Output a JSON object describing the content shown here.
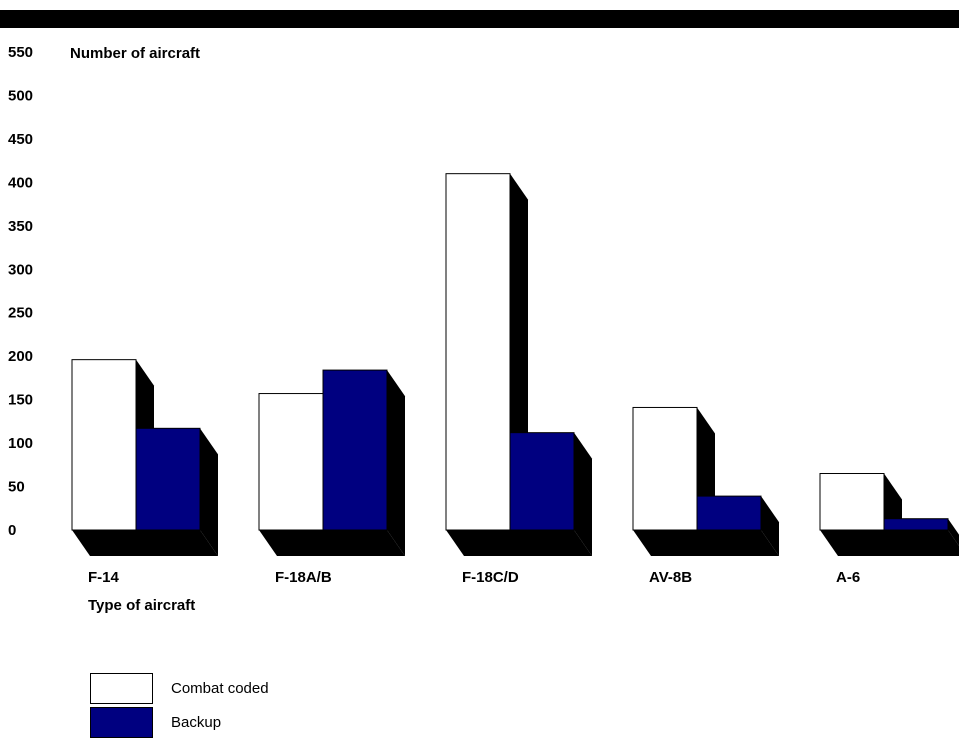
{
  "chart_data": {
    "type": "bar",
    "ylabel": "Number of aircraft",
    "xlabel": "Type of aircraft",
    "ylim": [
      0,
      550
    ],
    "yticks": [
      0,
      50,
      100,
      150,
      200,
      250,
      300,
      350,
      400,
      450,
      500,
      550
    ],
    "categories": [
      "F-14",
      "F-18A/B",
      "F-18C/D",
      "AV-8B",
      "A-6"
    ],
    "series": [
      {
        "name": "Combat coded",
        "values": [
          196,
          157,
          410,
          141,
          65
        ],
        "color": "#ffffff"
      },
      {
        "name": "Backup",
        "values": [
          117,
          184,
          112,
          39,
          13
        ],
        "color": "#000080"
      }
    ],
    "legend_position": "bottom-left",
    "grid": false,
    "style": "3d"
  }
}
